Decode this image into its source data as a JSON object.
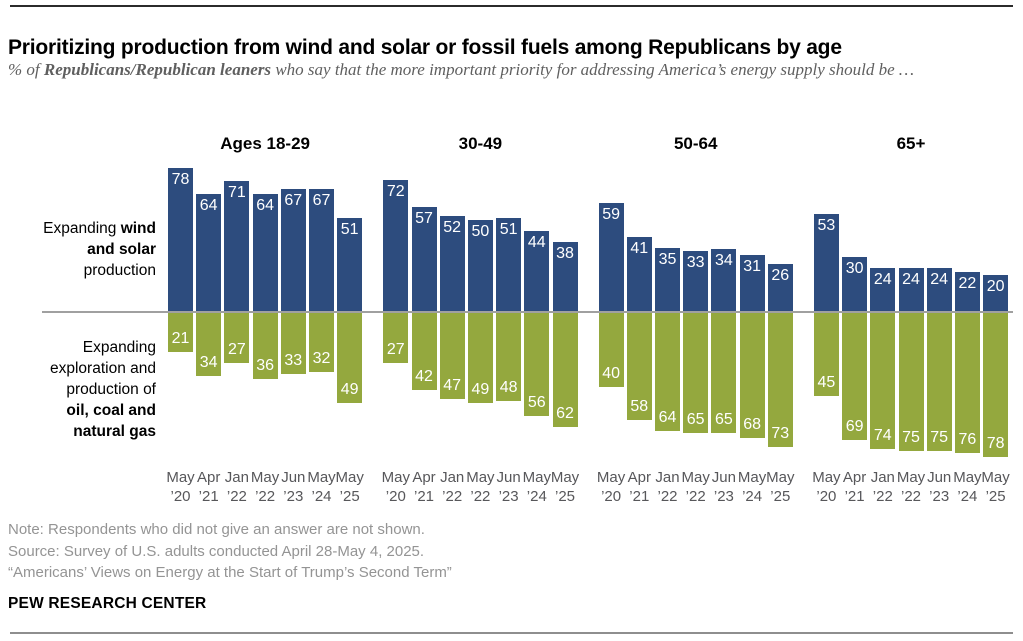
{
  "header": {
    "title": "Prioritizing production from wind and solar or fossil fuels among Republicans by age",
    "subtitle_prefix": "% of ",
    "subtitle_bold": "Republicans/Republican leaners",
    "subtitle_suffix": " who say that the more important priority for addressing America’s energy supply should be …"
  },
  "chart_data": {
    "type": "bar",
    "subtype": "diverging-grouped",
    "unit": "%",
    "title": "Prioritizing production from wind and solar or fossil fuels among Republicans by age",
    "groups": [
      "Ages 18-29",
      "30-49",
      "50-64",
      "65+"
    ],
    "x": [
      "May ’20",
      "Apr ’21",
      "Jan ’22",
      "May ’22",
      "Jun ’23",
      "May ’24",
      "May ’25"
    ],
    "x_months": [
      "May",
      "Apr",
      "Jan",
      "May",
      "Jun",
      "May",
      "May"
    ],
    "x_years": [
      "’20",
      "’21",
      "’22",
      "’22",
      "’23",
      "’24",
      "’25"
    ],
    "ylim": [
      0,
      80
    ],
    "grid": false,
    "value_labels": "inside end, white",
    "series": [
      {
        "name": "Expanding wind and solar production",
        "direction": "up",
        "color": "#2d4c7e",
        "values_by_group": [
          [
            78,
            64,
            71,
            64,
            67,
            67,
            51
          ],
          [
            72,
            57,
            52,
            50,
            51,
            44,
            38
          ],
          [
            59,
            41,
            35,
            33,
            34,
            31,
            26
          ],
          [
            53,
            30,
            24,
            24,
            24,
            22,
            20
          ]
        ]
      },
      {
        "name": "Expanding exploration and production of oil, coal and natural gas",
        "direction": "down",
        "color": "#94a83e",
        "values_by_group": [
          [
            21,
            34,
            27,
            36,
            33,
            32,
            49
          ],
          [
            27,
            42,
            47,
            49,
            48,
            56,
            62
          ],
          [
            40,
            58,
            64,
            65,
            65,
            68,
            73
          ],
          [
            45,
            69,
            74,
            75,
            75,
            76,
            78
          ]
        ]
      }
    ]
  },
  "side_labels": {
    "top": {
      "rows": [
        [
          {
            "t": "Expanding ",
            "b": false
          },
          {
            "t": "wind",
            "b": true
          }
        ],
        [
          {
            "t": "and solar",
            "b": true
          }
        ],
        [
          {
            "t": "production",
            "b": false
          }
        ]
      ]
    },
    "bottom": {
      "rows": [
        [
          {
            "t": "Expanding",
            "b": false
          }
        ],
        [
          {
            "t": "exploration and",
            "b": false
          }
        ],
        [
          {
            "t": "production of",
            "b": false
          }
        ],
        [
          {
            "t": "oil, coal and",
            "b": true
          }
        ],
        [
          {
            "t": "natural gas",
            "b": true
          }
        ]
      ]
    }
  },
  "notes": {
    "note": "Note: Respondents who did not give an answer are not shown.",
    "source": "Source: Survey of U.S. adults conducted April 28-May 4, 2025.",
    "quote": "“Americans’ Views on Energy at the Start of Trump’s Second Term”",
    "brand": "PEW RESEARCH CENTER"
  },
  "colors": {
    "wind_solar_blue": "#2d4c7e",
    "fossil_green": "#94a83e",
    "zero_line": "#a0a0a0",
    "tick_text": "#57575a",
    "note_text": "#949494",
    "top_rule": "#2b2b2b",
    "bottom_rule": "#8e8e8e"
  }
}
